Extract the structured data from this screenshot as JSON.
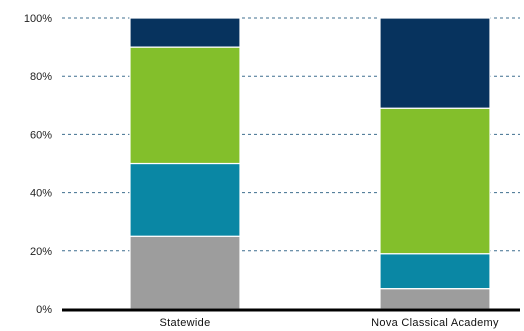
{
  "chart_data": {
    "type": "bar",
    "stacked": true,
    "percent": true,
    "title": "",
    "xlabel": "",
    "ylabel": "",
    "ylim": [
      0,
      100
    ],
    "yticks": [
      0,
      20,
      40,
      60,
      80,
      100
    ],
    "ytick_labels": [
      "0%",
      "20%",
      "40%",
      "60%",
      "80%",
      "100%"
    ],
    "grid": true,
    "legend": "none",
    "categories": [
      "Statewide",
      "Nova Classical Academy"
    ],
    "series": [
      {
        "color": "#9d9d9d",
        "values": [
          25,
          7
        ]
      },
      {
        "color": "#0a87a4",
        "values": [
          25,
          12
        ]
      },
      {
        "color": "#83bf2b",
        "values": [
          40,
          50
        ]
      },
      {
        "color": "#07335e",
        "values": [
          10,
          31
        ]
      }
    ]
  }
}
